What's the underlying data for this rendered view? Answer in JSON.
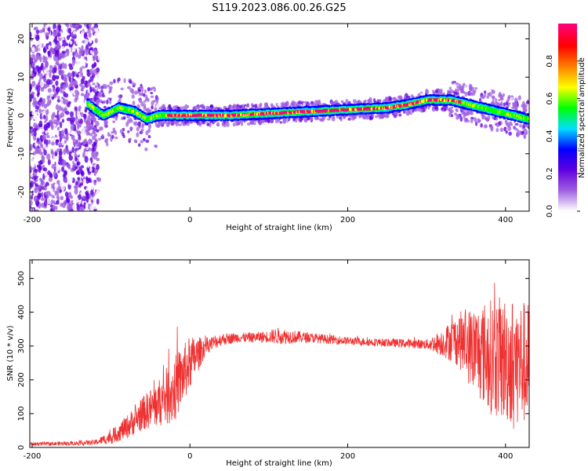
{
  "figure_title": "S119.2023.086.00.26.G25",
  "chart_data": [
    {
      "type": "heatmap",
      "title": "S119.2023.086.00.26.G25",
      "xlabel": "Height of straight line (km)",
      "ylabel": "Frequency (Hz)",
      "xlim": [
        -203,
        430
      ],
      "ylim": [
        -25,
        24
      ],
      "xticks": [
        -200,
        0,
        200,
        400
      ],
      "yticks": [
        -20,
        -10,
        0,
        10,
        20
      ],
      "grid": false,
      "colorbar": {
        "label": "Normalized spectral amplitude",
        "range": [
          0.0,
          1.0
        ],
        "ticks": [
          0.0,
          0.2,
          0.4,
          0.6,
          0.8
        ],
        "colormap": [
          "#ffffff",
          "#a060e0",
          "#6000e0",
          "#0000ff",
          "#00e0ff",
          "#00ff00",
          "#ffff00",
          "#ff8000",
          "#ff0000",
          "#ff0080"
        ]
      },
      "ridge": {
        "x": [
          -130,
          -110,
          -90,
          -70,
          -55,
          -40,
          -20,
          0,
          50,
          100,
          150,
          200,
          250,
          280,
          300,
          330,
          350,
          370,
          390,
          410,
          430
        ],
        "frequency": [
          3,
          0,
          2,
          1,
          -1,
          0,
          0,
          0,
          0,
          0.5,
          1,
          1.5,
          2,
          3,
          4,
          4,
          3,
          2,
          1,
          0,
          -1
        ]
      },
      "scatter_region": {
        "x_range": [
          -203,
          -115
        ],
        "frequency_range": [
          -25,
          24
        ]
      }
    },
    {
      "type": "line",
      "xlabel": "Height of straight line (km)",
      "ylabel": "SNR (10 * v/v)",
      "xlim": [
        -203,
        430
      ],
      "ylim": [
        0,
        555
      ],
      "xticks": [
        -200,
        0,
        200,
        400
      ],
      "yticks": [
        0,
        100,
        200,
        300,
        400,
        500
      ],
      "grid": false,
      "series": [
        {
          "name": "SNR",
          "color": "#ef3131",
          "x": [
            -203,
            -150,
            -120,
            -100,
            -80,
            -60,
            -40,
            -20,
            0,
            20,
            40,
            60,
            80,
            100,
            110,
            150,
            200,
            250,
            300,
            320,
            340,
            360,
            380,
            400,
            420,
            430
          ],
          "mean": [
            10,
            12,
            15,
            30,
            60,
            100,
            130,
            170,
            250,
            300,
            320,
            325,
            325,
            328,
            330,
            325,
            315,
            310,
            305,
            310,
            320,
            290,
            270,
            260,
            250,
            250
          ],
          "spread": [
            5,
            6,
            8,
            20,
            35,
            50,
            70,
            100,
            80,
            25,
            18,
            15,
            15,
            18,
            25,
            15,
            12,
            12,
            15,
            40,
            80,
            130,
            170,
            190,
            190,
            180
          ]
        }
      ]
    }
  ]
}
